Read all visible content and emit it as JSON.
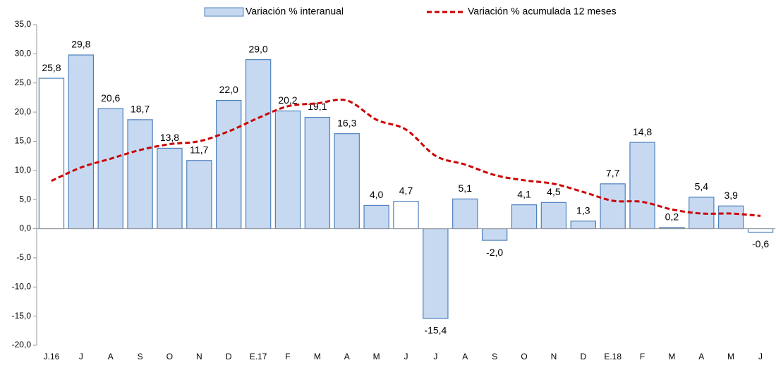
{
  "chart_data": {
    "type": "bar",
    "categories": [
      "J.16",
      "J",
      "A",
      "S",
      "O",
      "N",
      "D",
      "E.17",
      "F",
      "M",
      "A",
      "M",
      "J",
      "J",
      "A",
      "S",
      "O",
      "N",
      "D",
      "E.18",
      "F",
      "M",
      "A",
      "M",
      "J"
    ],
    "series": [
      {
        "name": "Variación % interanual",
        "type": "bar",
        "color": "#c6d9f1",
        "edge_color": "#4f81bd",
        "colors": [
          "#ffffff",
          "#c6d9f1",
          "#c6d9f1",
          "#c6d9f1",
          "#c6d9f1",
          "#c6d9f1",
          "#c6d9f1",
          "#c6d9f1",
          "#c6d9f1",
          "#c6d9f1",
          "#c6d9f1",
          "#c6d9f1",
          "#ffffff",
          "#c6d9f1",
          "#c6d9f1",
          "#c6d9f1",
          "#c6d9f1",
          "#c6d9f1",
          "#c6d9f1",
          "#c6d9f1",
          "#c6d9f1",
          "#c6d9f1",
          "#c6d9f1",
          "#c6d9f1",
          "#ffffff"
        ],
        "values": [
          25.8,
          29.8,
          20.6,
          18.7,
          13.8,
          11.7,
          22.0,
          29.0,
          20.2,
          19.1,
          16.3,
          4.0,
          4.7,
          -15.4,
          5.1,
          -2.0,
          4.1,
          4.5,
          1.3,
          7.7,
          14.8,
          0.2,
          5.4,
          3.9,
          -0.6
        ],
        "value_labels": [
          "25,8",
          "29,8",
          "20,6",
          "18,7",
          "13,8",
          "11,7",
          "22,0",
          "29,0",
          "20,2",
          "19,1",
          "16,3",
          "4,0",
          "4,7",
          "-15,4",
          "5,1",
          "-2,0",
          "4,1",
          "4,5",
          "1,3",
          "7,7",
          "14,8",
          "0,2",
          "5,4",
          "3,9",
          "-0,6"
        ]
      },
      {
        "name": "Variación % acumulada 12 meses",
        "type": "line",
        "color": "#cc0000",
        "dashed": true,
        "values": [
          8.2,
          10.5,
          12.0,
          13.5,
          14.5,
          15.0,
          16.7,
          19.0,
          21.0,
          21.5,
          22.0,
          18.7,
          17.0,
          12.5,
          11.0,
          9.2,
          8.3,
          7.7,
          6.3,
          4.8,
          4.6,
          3.3,
          2.6,
          2.6,
          2.2
        ]
      }
    ],
    "ylim": [
      -20,
      35
    ],
    "yticks": [
      {
        "value": -20,
        "label": "-20,0"
      },
      {
        "value": -15,
        "label": "-15,0"
      },
      {
        "value": -10,
        "label": "-10,0"
      },
      {
        "value": -5,
        "label": "-5,0"
      },
      {
        "value": 0,
        "label": "0,0"
      },
      {
        "value": 5,
        "label": "5,0"
      },
      {
        "value": 10,
        "label": "10,0"
      },
      {
        "value": 15,
        "label": "15,0"
      },
      {
        "value": 20,
        "label": "20,0"
      },
      {
        "value": 25,
        "label": "25,0"
      },
      {
        "value": 30,
        "label": "30,0"
      },
      {
        "value": 35,
        "label": "35,0"
      }
    ],
    "grid": false,
    "legend": "top"
  }
}
